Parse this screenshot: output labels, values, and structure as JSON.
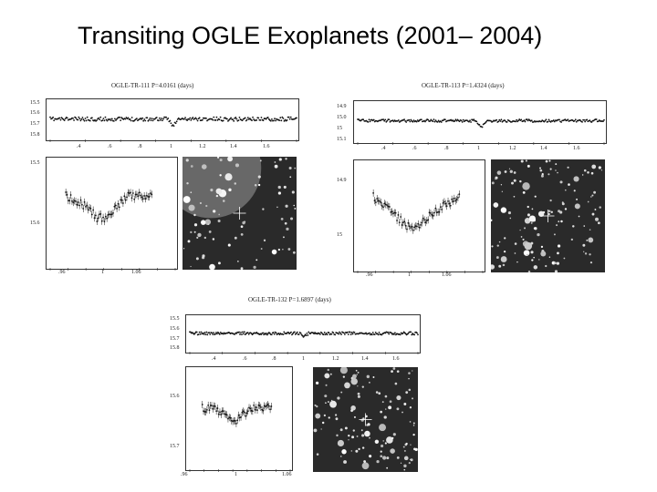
{
  "slide": {
    "title": "Transiting OGLE Exoplanets (2001– 2004)"
  },
  "colors": {
    "background": "#ffffff",
    "points": "#111111",
    "field_bg": "#2a2a2a"
  },
  "panels": [
    {
      "title": "OGLE-TR-111 P=4.0161 (days)",
      "top_yticks": [
        "15.5",
        "15.6",
        "15.7",
        "15.8"
      ],
      "top_xticks": [
        ".4",
        ".6",
        ".8",
        "1",
        "1.2",
        "1.4",
        "1.6"
      ],
      "zoom_yticks": [
        "15.5",
        "15.6"
      ],
      "zoom_xticks": [
        ".96",
        "1",
        "1.06"
      ]
    },
    {
      "title": "OGLE-TR-113 P=1.4324 (days)",
      "top_yticks": [
        "14.9",
        "15.0",
        "15",
        "15.1"
      ],
      "top_xticks": [
        ".4",
        ".6",
        ".8",
        "1",
        "1.2",
        "1.4",
        "1.6"
      ],
      "zoom_yticks": [
        "14.9",
        "15"
      ],
      "zoom_xticks": [
        ".96",
        "1",
        "1.06"
      ]
    },
    {
      "title": "OGLE-TR-132 P=1.6897 (days)",
      "top_yticks": [
        "15.5",
        "15.6",
        "15.7",
        "15.8"
      ],
      "top_xticks": [
        ".4",
        ".6",
        ".8",
        "1",
        "1.2",
        "1.4",
        "1.6"
      ],
      "zoom_yticks": [
        "15.6",
        "15.7"
      ],
      "zoom_xticks": [
        ".96",
        "1",
        "1.06"
      ]
    }
  ],
  "chart_data": [
    {
      "type": "scatter",
      "title": "OGLE-TR-111 P=4.0161 (days)",
      "x_range": [
        0.3,
        1.7
      ],
      "phase_full": {
        "x": [
          0.3,
          0.5,
          0.7,
          0.9,
          0.97,
          1.0,
          1.03,
          1.1,
          1.3,
          1.5,
          1.7
        ],
        "y": [
          15.59,
          15.59,
          15.59,
          15.59,
          15.59,
          15.61,
          15.59,
          15.59,
          15.59,
          15.59,
          15.59
        ]
      },
      "transit_zoom": {
        "x": [
          0.95,
          0.97,
          0.99,
          1.0,
          1.01,
          1.03,
          1.06
        ],
        "y": [
          15.55,
          15.56,
          15.58,
          15.58,
          15.57,
          15.55,
          15.55
        ]
      }
    },
    {
      "type": "scatter",
      "title": "OGLE-TR-113 P=1.4324 (days)",
      "x_range": [
        0.3,
        1.7
      ],
      "phase_full": {
        "x": [
          0.3,
          0.5,
          0.7,
          0.9,
          0.97,
          1.0,
          1.03,
          1.1,
          1.3,
          1.5,
          1.7
        ],
        "y": [
          14.99,
          14.99,
          14.99,
          14.99,
          14.99,
          15.02,
          14.99,
          14.99,
          14.99,
          14.99,
          14.99
        ]
      },
      "transit_zoom": {
        "x": [
          0.95,
          0.97,
          0.99,
          1.0,
          1.01,
          1.03,
          1.06
        ],
        "y": [
          14.95,
          14.97,
          14.99,
          15.0,
          14.99,
          14.97,
          14.95
        ]
      }
    },
    {
      "type": "scatter",
      "title": "OGLE-TR-132 P=1.6897 (days)",
      "x_range": [
        0.3,
        1.7
      ],
      "phase_full": {
        "x": [
          0.3,
          0.5,
          0.7,
          0.9,
          0.97,
          1.0,
          1.03,
          1.1,
          1.3,
          1.5,
          1.7
        ],
        "y": [
          15.6,
          15.6,
          15.6,
          15.6,
          15.6,
          15.61,
          15.6,
          15.6,
          15.6,
          15.6,
          15.6
        ]
      },
      "transit_zoom": {
        "x": [
          0.95,
          0.97,
          0.99,
          1.0,
          1.01,
          1.03,
          1.06
        ],
        "y": [
          15.6,
          15.6,
          15.61,
          15.62,
          15.61,
          15.6,
          15.6
        ]
      }
    }
  ]
}
